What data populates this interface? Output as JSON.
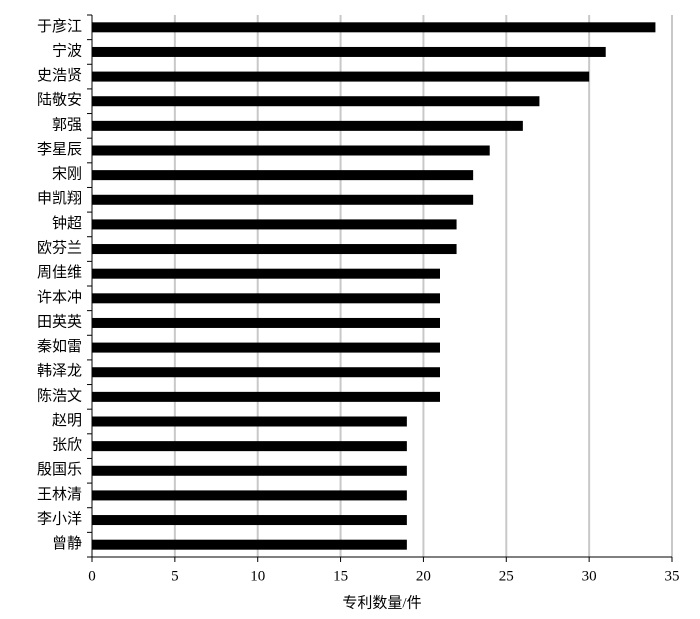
{
  "chart_data": {
    "type": "barh",
    "x_label": "专利数量/件",
    "categories": [
      "于彦江",
      "宁波",
      "史浩贤",
      "陆敬安",
      "郭强",
      "李星辰",
      "宋刚",
      "申凯翔",
      "钟超",
      "欧芬兰",
      "周佳维",
      "许本冲",
      "田英英",
      "秦如雷",
      "韩泽龙",
      "陈浩文",
      "赵明",
      "张欣",
      "殷国乐",
      "王林清",
      "李小洋",
      "曾静"
    ],
    "values": [
      34,
      31,
      30,
      27,
      26,
      24,
      23,
      23,
      22,
      22,
      21,
      21,
      21,
      21,
      21,
      21,
      19,
      19,
      19,
      19,
      19,
      19
    ],
    "color": "#000000",
    "xlim": [
      0,
      35
    ],
    "xticks": [
      0,
      5,
      10,
      15,
      20,
      25,
      30,
      35
    ],
    "grid": true
  }
}
